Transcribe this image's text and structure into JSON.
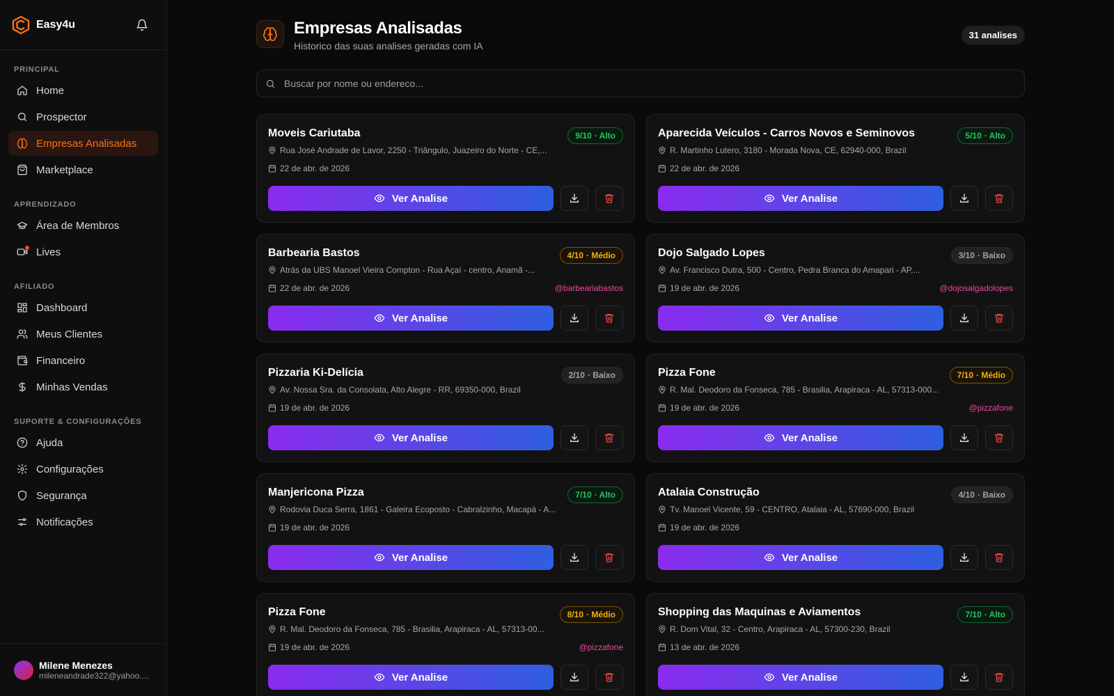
{
  "brand": {
    "name": "Easy4u"
  },
  "sidebar": {
    "sections": [
      {
        "title": "PRINCIPAL",
        "items": [
          {
            "label": "Home",
            "icon": "home-icon"
          },
          {
            "label": "Prospector",
            "icon": "search-icon"
          },
          {
            "label": "Empresas Analisadas",
            "icon": "brain-icon",
            "active": true
          },
          {
            "label": "Marketplace",
            "icon": "shopping-bag-icon"
          }
        ]
      },
      {
        "title": "APRENDIZADO",
        "items": [
          {
            "label": "Área de Membros",
            "icon": "graduation-cap-icon"
          },
          {
            "label": "Lives",
            "icon": "video-icon",
            "dot": true
          }
        ]
      },
      {
        "title": "AFILIADO",
        "items": [
          {
            "label": "Dashboard",
            "icon": "dashboard-icon"
          },
          {
            "label": "Meus Clientes",
            "icon": "users-icon"
          },
          {
            "label": "Financeiro",
            "icon": "wallet-icon"
          },
          {
            "label": "Minhas Vendas",
            "icon": "dollar-icon"
          }
        ]
      },
      {
        "title": "SUPORTE & CONFIGURAÇÕES",
        "items": [
          {
            "label": "Ajuda",
            "icon": "help-circle-icon"
          },
          {
            "label": "Configurações",
            "icon": "gear-icon"
          },
          {
            "label": "Segurança",
            "icon": "shield-icon"
          },
          {
            "label": "Notificações",
            "icon": "sliders-icon"
          }
        ]
      }
    ]
  },
  "user": {
    "name": "Milene Menezes",
    "email": "mileneandrade322@yahoo...."
  },
  "header": {
    "title": "Empresas Analisadas",
    "subtitle": "Historico das suas analises geradas com IA",
    "count": "31 analises"
  },
  "search": {
    "placeholder": "Buscar por nome ou endereco..."
  },
  "colors": {
    "accent": "#f97316",
    "button_from": "#8b2bee",
    "button_to": "#2f5fe0",
    "alto": "#22c55e",
    "medio": "#f5b10b",
    "handle": "#ec4899"
  },
  "cards": [
    {
      "name": "Moveis Cariutaba",
      "score": "9/10",
      "level": "· Alto",
      "level_class": "alto",
      "address": "Rua José Andrade de Lavor, 2250 - Triângulo, Juazeiro do Norte - CE,...",
      "date": "22 de abr. de 2026",
      "handle": "",
      "button": "Ver Analise"
    },
    {
      "name": "Aparecida Veículos - Carros Novos e Seminovos",
      "score": "5/10",
      "level": "· Alto",
      "level_class": "alto",
      "address": "R. Martinho Lutero, 3180 - Morada Nova, CE, 62940-000, Brazil",
      "date": "22 de abr. de 2026",
      "handle": "",
      "button": "Ver Analise"
    },
    {
      "name": "Barbearia Bastos",
      "score": "4/10",
      "level": "· Médio",
      "level_class": "medio",
      "address": "Atrás da UBS Manoel Vieira Compton - Rua Açaí - centro, Anamã -...",
      "date": "22 de abr. de 2026",
      "handle": "@barbeariabastos",
      "button": "Ver Analise"
    },
    {
      "name": "Dojo Salgado Lopes",
      "score": "3/10",
      "level": "· Baixo",
      "level_class": "baixo",
      "address": "Av. Francisco Dutra, 500 - Centro, Pedra Branca do Amapari - AP,...",
      "date": "19 de abr. de 2026",
      "handle": "@dojosalgadolopes",
      "button": "Ver Analise"
    },
    {
      "name": "Pizzaria Ki-Delícia",
      "score": "2/10",
      "level": "· Baixo",
      "level_class": "baixo",
      "address": "Av. Nossa Sra. da Consolata, Alto Alegre - RR, 69350-000, Brazil",
      "date": "19 de abr. de 2026",
      "handle": "",
      "button": "Ver Analise"
    },
    {
      "name": "Pizza Fone",
      "score": "7/10",
      "level": "· Médio",
      "level_class": "medio",
      "address": "R. Mal. Deodoro da Fonseca, 785 - Brasilia, Arapiraca - AL, 57313-000...",
      "date": "19 de abr. de 2026",
      "handle": "@pizzafone",
      "button": "Ver Analise"
    },
    {
      "name": "Manjericona Pizza",
      "score": "7/10",
      "level": "· Alto",
      "level_class": "alto",
      "address": "Rodovia Duca Serra, 1861 - Galeira Ecoposto - Cabralzinho, Macapá - A...",
      "date": "19 de abr. de 2026",
      "handle": "",
      "button": "Ver Analise"
    },
    {
      "name": "Atalaia Construção",
      "score": "4/10",
      "level": "· Baixo",
      "level_class": "baixo",
      "address": "Tv. Manoel Vicente, 59 - CENTRO, Atalaia - AL, 57690-000, Brazil",
      "date": "19 de abr. de 2026",
      "handle": "",
      "button": "Ver Analise"
    },
    {
      "name": "Pizza Fone",
      "score": "8/10",
      "level": "· Médio",
      "level_class": "medio",
      "address": "R. Mal. Deodoro da Fonseca, 785 - Brasilia, Arapiraca - AL, 57313-00...",
      "date": "19 de abr. de 2026",
      "handle": "@pizzafone",
      "button": "Ver Analise"
    },
    {
      "name": "Shopping das Maquinas e Aviamentos",
      "score": "7/10",
      "level": "· Alto",
      "level_class": "alto",
      "address": "R. Dom Vital, 32 - Centro, Arapiraca - AL, 57300-230, Brazil",
      "date": "13 de abr. de 2026",
      "handle": "",
      "button": "Ver Analise"
    }
  ]
}
